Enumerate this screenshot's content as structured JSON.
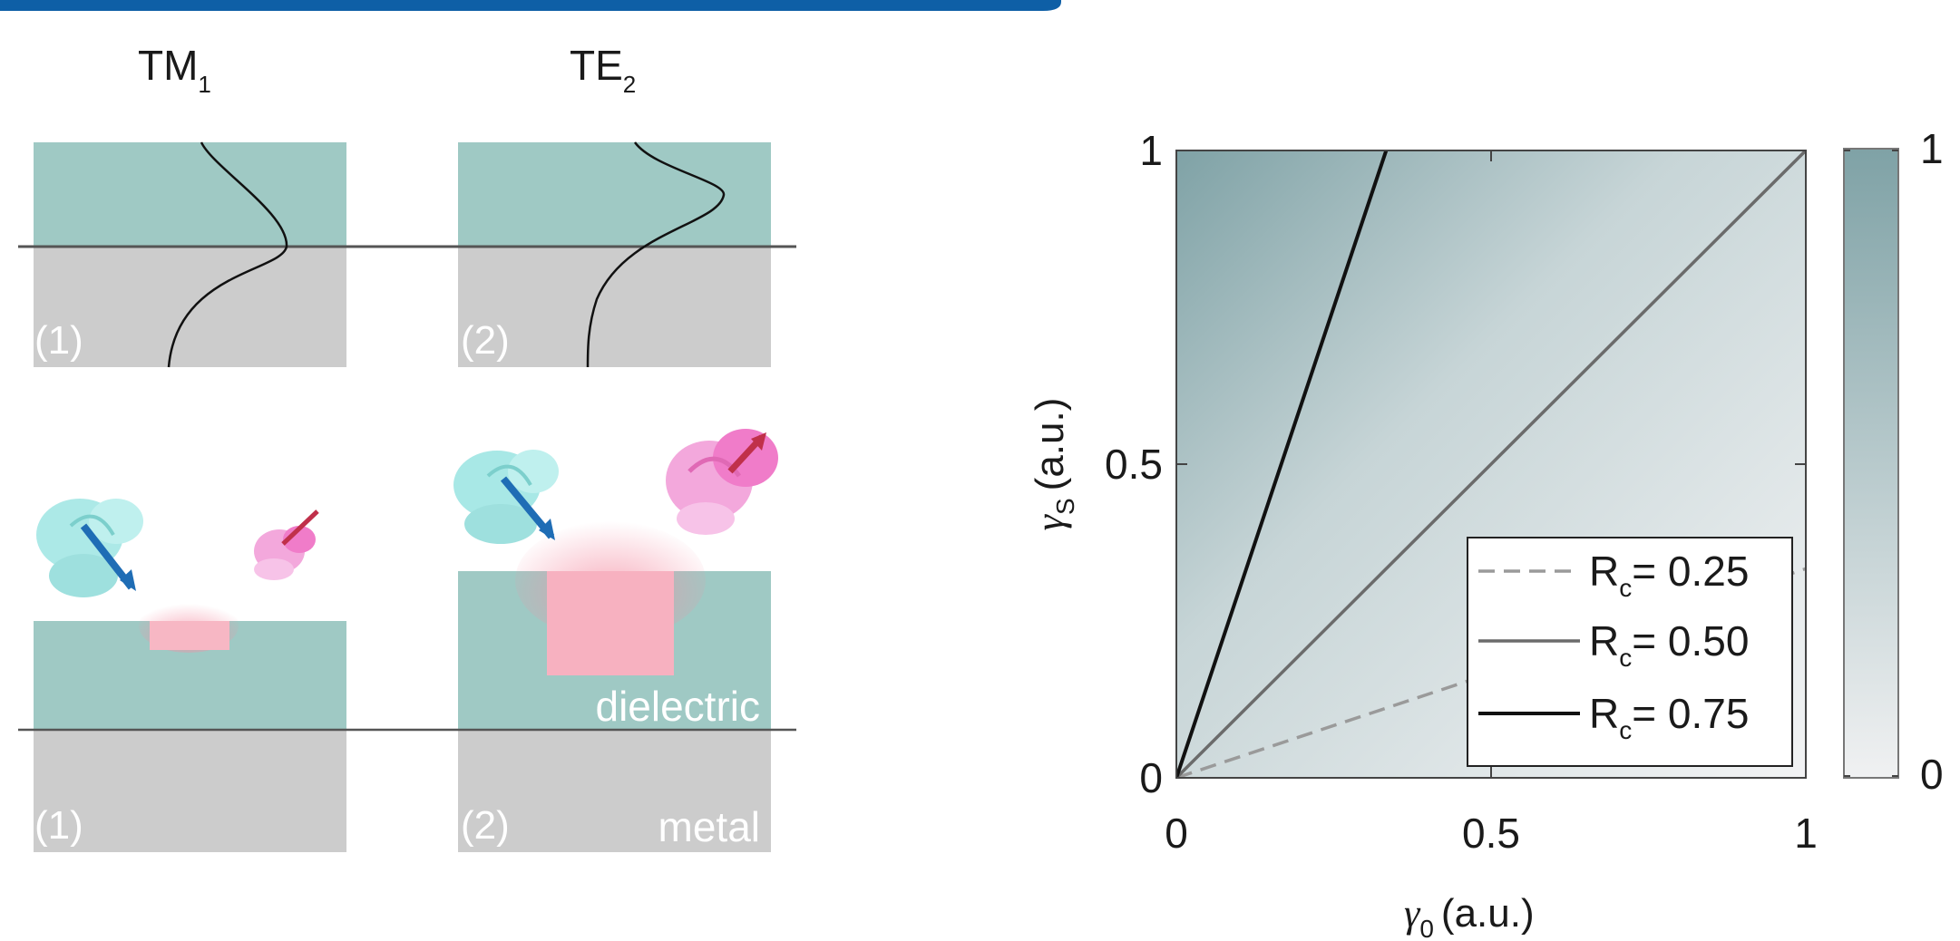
{
  "left": {
    "mode_labels": [
      {
        "base": "TM",
        "sub": "1"
      },
      {
        "base": "TE",
        "sub": "2"
      }
    ],
    "panel_tags": [
      "(1)",
      "(2)",
      "(1)",
      "(2)"
    ],
    "material_labels": {
      "dielectric": "dielectric",
      "metal": "metal"
    }
  },
  "colors": {
    "dielectric": "#9fc9c4",
    "metal": "#cccccc",
    "glow": "#f7a9b8",
    "light_cyan": "#a8e8e6",
    "pink": "#f07cc9",
    "arrow_blue": "#1f6db5",
    "arrow_red": "#c0304a",
    "map_dark": "#7fa2a6",
    "map_light": "#eef0f1"
  },
  "chart_data": {
    "type": "heatmap",
    "xlabel": {
      "symbol": "γ",
      "sub": "0",
      "unit": "(a.u.)"
    },
    "ylabel": {
      "symbol": "γ",
      "sub": "S",
      "unit": "(a.u.)"
    },
    "xlim": [
      0,
      1
    ],
    "ylim": [
      0,
      1
    ],
    "xticks": [
      "0",
      "0.5",
      "1"
    ],
    "yticks": [
      "0",
      "0.5",
      "1"
    ],
    "colorbar": {
      "min_label": "0",
      "max_label": "1",
      "range": [
        0,
        1
      ]
    },
    "contours": [
      {
        "Rc": 0.25,
        "style": "dashed",
        "color": "#9a9a9a",
        "legend": "= 0.25"
      },
      {
        "Rc": 0.5,
        "style": "solid",
        "color": "#6b6b6b",
        "legend": "= 0.50"
      },
      {
        "Rc": 0.75,
        "style": "solid",
        "color": "#111111",
        "legend": "= 0.75"
      }
    ],
    "legend_symbol": {
      "base": "R",
      "sub": "c"
    },
    "legend_position": "bottom-right"
  }
}
